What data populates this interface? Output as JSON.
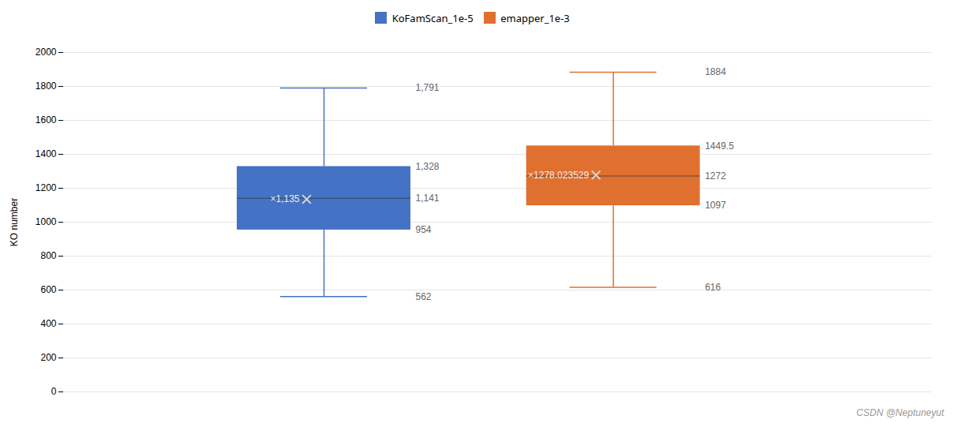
{
  "chart_data": {
    "type": "box",
    "ylabel": "KO number",
    "ylim": [
      0,
      2000
    ],
    "yticks": [
      0,
      200,
      400,
      600,
      800,
      1000,
      1200,
      1400,
      1600,
      1800,
      2000
    ],
    "grid": true,
    "legend": "top",
    "data_labels": true,
    "annotations": [
      "CSDN @Neptuneyut"
    ],
    "series": [
      {
        "name": "KoFamScan_1e-5",
        "color": "#4472C4",
        "whisker_low": 562,
        "q1": 954,
        "median": 1141,
        "q3": 1328,
        "whisker_high": 1791,
        "mean": 1135,
        "mean_label": "×1,135",
        "value_labels": [
          "1,791",
          "1,328",
          "1,141",
          "954",
          "562"
        ]
      },
      {
        "name": "emapper_1e-3",
        "color": "#E07030",
        "whisker_low": 616,
        "q1": 1097,
        "median": 1272,
        "q3": 1449.5,
        "whisker_high": 1884,
        "mean": 1278.023529,
        "mean_label": "×1278.023529",
        "value_labels": [
          "1884",
          "1449.5",
          "1272",
          "1097",
          "616"
        ]
      }
    ]
  }
}
